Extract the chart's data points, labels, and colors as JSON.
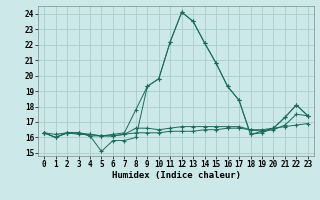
{
  "xlabel": "Humidex (Indice chaleur)",
  "ylabel": "",
  "background_color": "#cce8e8",
  "grid_color": "#aacccc",
  "line_color": "#1a6b5a",
  "xlim": [
    -0.5,
    23.5
  ],
  "ylim": [
    14.8,
    24.5
  ],
  "yticks": [
    15,
    16,
    17,
    18,
    19,
    20,
    21,
    22,
    23,
    24
  ],
  "xticks": [
    0,
    1,
    2,
    3,
    4,
    5,
    6,
    7,
    8,
    9,
    10,
    11,
    12,
    13,
    14,
    15,
    16,
    17,
    18,
    19,
    20,
    21,
    22,
    23
  ],
  "series": [
    [
      16.3,
      16.0,
      16.3,
      16.3,
      16.1,
      15.1,
      15.8,
      15.8,
      16.0,
      19.3,
      19.8,
      22.2,
      24.1,
      23.5,
      22.1,
      20.8,
      19.3,
      18.4,
      16.2,
      16.3,
      16.6,
      17.3,
      18.1,
      17.4
    ],
    [
      16.3,
      16.0,
      16.3,
      16.2,
      16.2,
      16.1,
      16.1,
      16.2,
      16.3,
      16.3,
      16.3,
      16.4,
      16.4,
      16.4,
      16.5,
      16.5,
      16.6,
      16.6,
      16.5,
      16.5,
      16.6,
      16.7,
      16.8,
      16.9
    ],
    [
      16.3,
      16.0,
      16.3,
      16.3,
      16.1,
      16.1,
      16.1,
      16.2,
      16.6,
      16.6,
      16.5,
      16.6,
      16.7,
      16.7,
      16.7,
      16.7,
      16.7,
      16.7,
      16.5,
      16.4,
      16.5,
      16.8,
      17.5,
      17.4
    ],
    [
      16.3,
      16.2,
      16.3,
      16.3,
      16.2,
      16.1,
      16.2,
      16.3,
      17.8,
      19.3,
      19.8,
      22.2,
      24.1,
      23.5,
      22.1,
      20.8,
      19.3,
      18.4,
      16.2,
      16.4,
      16.6,
      17.3,
      18.1,
      17.4
    ]
  ],
  "xlabel_fontsize": 6.5,
  "ylabel_fontsize": 6,
  "tick_fontsize": 5.5,
  "linewidth": 0.7,
  "markersize": 2.5
}
